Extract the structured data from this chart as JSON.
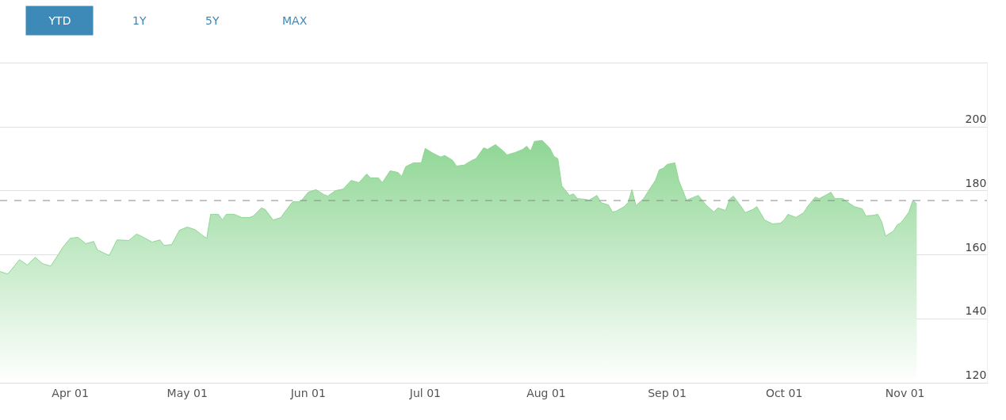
{
  "chart_data": {
    "type": "area",
    "annotations": [
      "YTD",
      "1Y",
      "5Y",
      "MAX"
    ],
    "x": [
      "--03-14",
      "--03-16",
      "--03-19",
      "--03-21",
      "--03-23",
      "--03-25",
      "--03-27",
      "--03-29",
      "--03-30",
      "--04-01",
      "--04-03",
      "--04-05",
      "--04-07",
      "--04-08",
      "--04-11",
      "--04-13",
      "--04-16",
      "--04-18",
      "--04-19",
      "--04-22",
      "--04-24",
      "--04-25",
      "--04-27",
      "--04-29",
      "--05-01",
      "--05-03",
      "--05-05",
      "--05-06",
      "--05-07",
      "--05-09",
      "--05-10",
      "--05-11",
      "--05-13",
      "--05-15",
      "--05-17",
      "--05-18",
      "--05-20",
      "--05-21",
      "--05-23",
      "--05-25",
      "--05-26",
      "--05-28",
      "--05-30",
      "--06-01",
      "--06-03",
      "--06-05",
      "--06-06",
      "--06-08",
      "--06-10",
      "--06-12",
      "--06-14",
      "--06-16",
      "--06-17",
      "--06-19",
      "--06-20",
      "--06-22",
      "--06-24",
      "--06-25",
      "--06-26",
      "--06-28",
      "--06-30",
      "--07-01",
      "--07-03",
      "--07-05",
      "--07-06",
      "--07-08",
      "--07-09",
      "--07-11",
      "--07-13",
      "--07-14",
      "--07-16",
      "--07-17",
      "--07-19",
      "--07-21",
      "--07-22",
      "--07-24",
      "--07-26",
      "--07-27",
      "--07-28",
      "--07-29",
      "--07-31",
      "--08-02",
      "--08-03",
      "--08-04",
      "--08-05",
      "--08-07",
      "--08-08",
      "--08-09",
      "--08-11",
      "--08-12",
      "--08-14",
      "--08-15",
      "--08-17",
      "--08-18",
      "--08-19",
      "--08-21",
      "--08-22",
      "--08-23",
      "--08-24",
      "--08-26",
      "--08-27",
      "--08-29",
      "--08-30",
      "--08-31",
      "--09-01",
      "--09-03",
      "--09-04",
      "--09-06",
      "--09-07",
      "--09-09",
      "--09-11",
      "--09-13",
      "--09-14",
      "--09-16",
      "--09-17",
      "--09-18",
      "--09-20",
      "--09-21",
      "--09-23",
      "--09-24",
      "--09-26",
      "--09-28",
      "--09-30",
      "--10-01",
      "--10-02",
      "--10-04",
      "--10-06",
      "--10-07",
      "--10-09",
      "--10-10",
      "--10-12",
      "--10-13",
      "--10-14",
      "--10-16",
      "--10-18",
      "--10-19",
      "--10-21",
      "--10-22",
      "--10-24",
      "--10-25",
      "--10-26",
      "--10-27",
      "--10-29",
      "--10-30",
      "--10-31",
      "--11-02",
      "--11-03",
      "--11-04"
    ],
    "series": [
      {
        "color": "#8fd694",
        "values": [
          154.8,
          154.0,
          158.5,
          156.8,
          159.2,
          157.2,
          156.5,
          160.2,
          162.2,
          165.2,
          165.5,
          163.5,
          164.2,
          161.5,
          159.8,
          164.7,
          164.5,
          166.5,
          166.0,
          164.0,
          164.7,
          163.0,
          163.2,
          167.7,
          168.7,
          167.9,
          166.0,
          165.2,
          172.7,
          172.7,
          170.9,
          172.7,
          172.7,
          171.7,
          171.7,
          172.2,
          174.7,
          174.2,
          170.9,
          171.7,
          173.4,
          176.6,
          176.6,
          179.6,
          180.4,
          178.9,
          178.4,
          180.1,
          180.6,
          183.3,
          182.6,
          185.3,
          184.1,
          184.1,
          182.6,
          186.3,
          185.8,
          184.6,
          187.6,
          188.8,
          188.8,
          193.3,
          191.8,
          190.6,
          191.1,
          189.6,
          187.8,
          188.1,
          189.6,
          190.1,
          193.5,
          193.0,
          194.5,
          192.5,
          191.3,
          192.0,
          193.0,
          194.0,
          192.5,
          195.5,
          195.8,
          193.3,
          190.8,
          190.1,
          181.6,
          178.6,
          179.1,
          177.6,
          177.4,
          177.1,
          178.6,
          176.4,
          175.6,
          173.4,
          173.7,
          175.1,
          176.4,
          180.4,
          175.4,
          177.6,
          179.6,
          183.3,
          186.6,
          187.1,
          188.3,
          188.8,
          183.3,
          177.1,
          177.6,
          178.6,
          175.6,
          173.4,
          174.7,
          173.9,
          177.4,
          178.4,
          175.1,
          173.2,
          174.2,
          175.1,
          170.9,
          169.7,
          169.9,
          170.9,
          172.7,
          171.7,
          173.2,
          175.1,
          178.1,
          177.6,
          178.9,
          179.6,
          177.6,
          177.6,
          175.9,
          175.1,
          174.4,
          172.2,
          172.4,
          172.7,
          170.4,
          165.9,
          167.4,
          169.4,
          170.1,
          173.4,
          177.1,
          175.9
        ]
      }
    ],
    "xlim": [
      "--03-14",
      "--11-22"
    ],
    "xticks": [
      {
        "value": "--04-01",
        "label": "Apr 01"
      },
      {
        "value": "--05-01",
        "label": "May 01"
      },
      {
        "value": "--06-01",
        "label": "Jun 01"
      },
      {
        "value": "--07-01",
        "label": "Jul 01"
      },
      {
        "value": "--08-01",
        "label": "Aug 01"
      },
      {
        "value": "--09-01",
        "label": "Sep 01"
      },
      {
        "value": "--10-01",
        "label": "Oct 01"
      },
      {
        "value": "--11-01",
        "label": "Nov 01"
      }
    ],
    "ylim": [
      120,
      220
    ],
    "yticks": [
      120,
      140,
      160,
      180,
      200,
      {
        "value": 220,
        "label": null
      }
    ],
    "ref_lines": [
      {
        "axis": "y",
        "value": 177,
        "color": "#888888",
        "line_style": "dashed"
      }
    ],
    "grid": "y",
    "legend": false,
    "marker": "none"
  }
}
